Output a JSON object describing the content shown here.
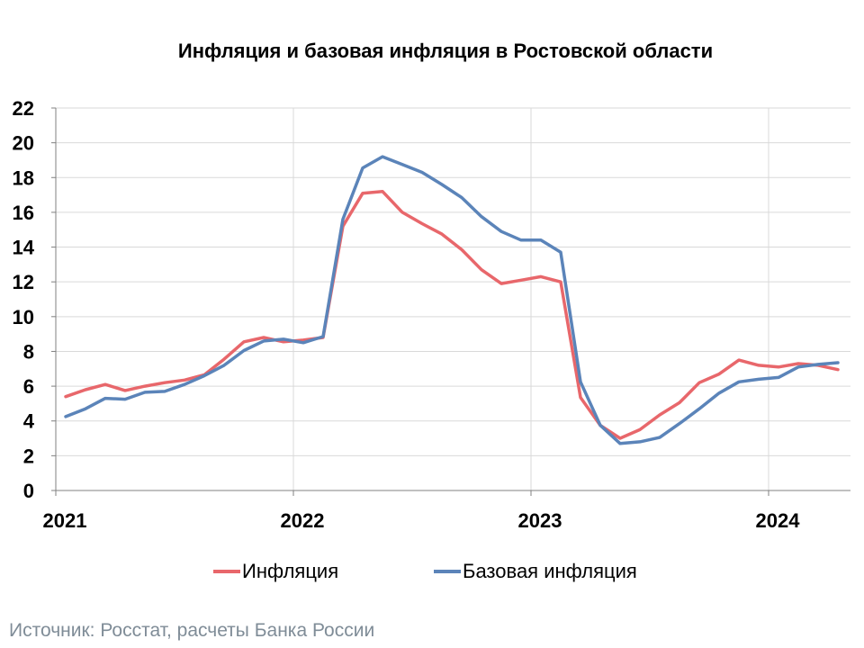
{
  "chart_data": {
    "type": "line",
    "title": "Инфляция и базовая инфляция в Ростовской области",
    "xlabel": "",
    "ylabel": "",
    "x_tick_labels": [
      "2021",
      "2022",
      "2023",
      "2024"
    ],
    "y_tick_labels": [
      "0",
      "2",
      "4",
      "6",
      "8",
      "10",
      "12",
      "14",
      "16",
      "18",
      "20",
      "22"
    ],
    "ylim": [
      0,
      22
    ],
    "grid": true,
    "legend_position": "bottom",
    "months": [
      "2021-01",
      "2021-02",
      "2021-03",
      "2021-04",
      "2021-05",
      "2021-06",
      "2021-07",
      "2021-08",
      "2021-09",
      "2021-10",
      "2021-11",
      "2021-12",
      "2022-01",
      "2022-02",
      "2022-03",
      "2022-04",
      "2022-05",
      "2022-06",
      "2022-07",
      "2022-08",
      "2022-09",
      "2022-10",
      "2022-11",
      "2022-12",
      "2023-01",
      "2023-02",
      "2023-03",
      "2023-04",
      "2023-05",
      "2023-06",
      "2023-07",
      "2023-08",
      "2023-09",
      "2023-10",
      "2023-11",
      "2023-12",
      "2024-01",
      "2024-02",
      "2024-03",
      "2024-04"
    ],
    "series": [
      {
        "name": "Инфляция",
        "color": "#e8676b",
        "values": [
          5.4,
          5.8,
          6.1,
          5.75,
          6.0,
          6.2,
          6.35,
          6.65,
          7.55,
          8.55,
          8.8,
          8.55,
          8.65,
          8.8,
          15.2,
          17.1,
          17.2,
          16.0,
          15.35,
          14.75,
          13.85,
          12.7,
          11.9,
          12.1,
          12.3,
          12.0,
          5.35,
          3.75,
          3.0,
          3.5,
          4.35,
          5.05,
          6.2,
          6.7,
          7.5,
          7.2,
          7.1,
          7.3,
          7.2,
          6.95
        ]
      },
      {
        "name": "Базовая инфляция",
        "color": "#5b84b9",
        "values": [
          4.25,
          4.7,
          5.3,
          5.25,
          5.65,
          5.7,
          6.1,
          6.6,
          7.2,
          8.05,
          8.6,
          8.7,
          8.5,
          8.85,
          15.6,
          18.55,
          19.2,
          18.75,
          18.3,
          17.6,
          16.85,
          15.75,
          14.9,
          14.4,
          14.4,
          13.7,
          6.25,
          3.75,
          2.7,
          2.8,
          3.05,
          3.85,
          4.7,
          5.6,
          6.25,
          6.4,
          6.5,
          7.1,
          7.25,
          7.35
        ]
      }
    ]
  },
  "source_note": "Источник: Росстат, расчеты Банка России"
}
